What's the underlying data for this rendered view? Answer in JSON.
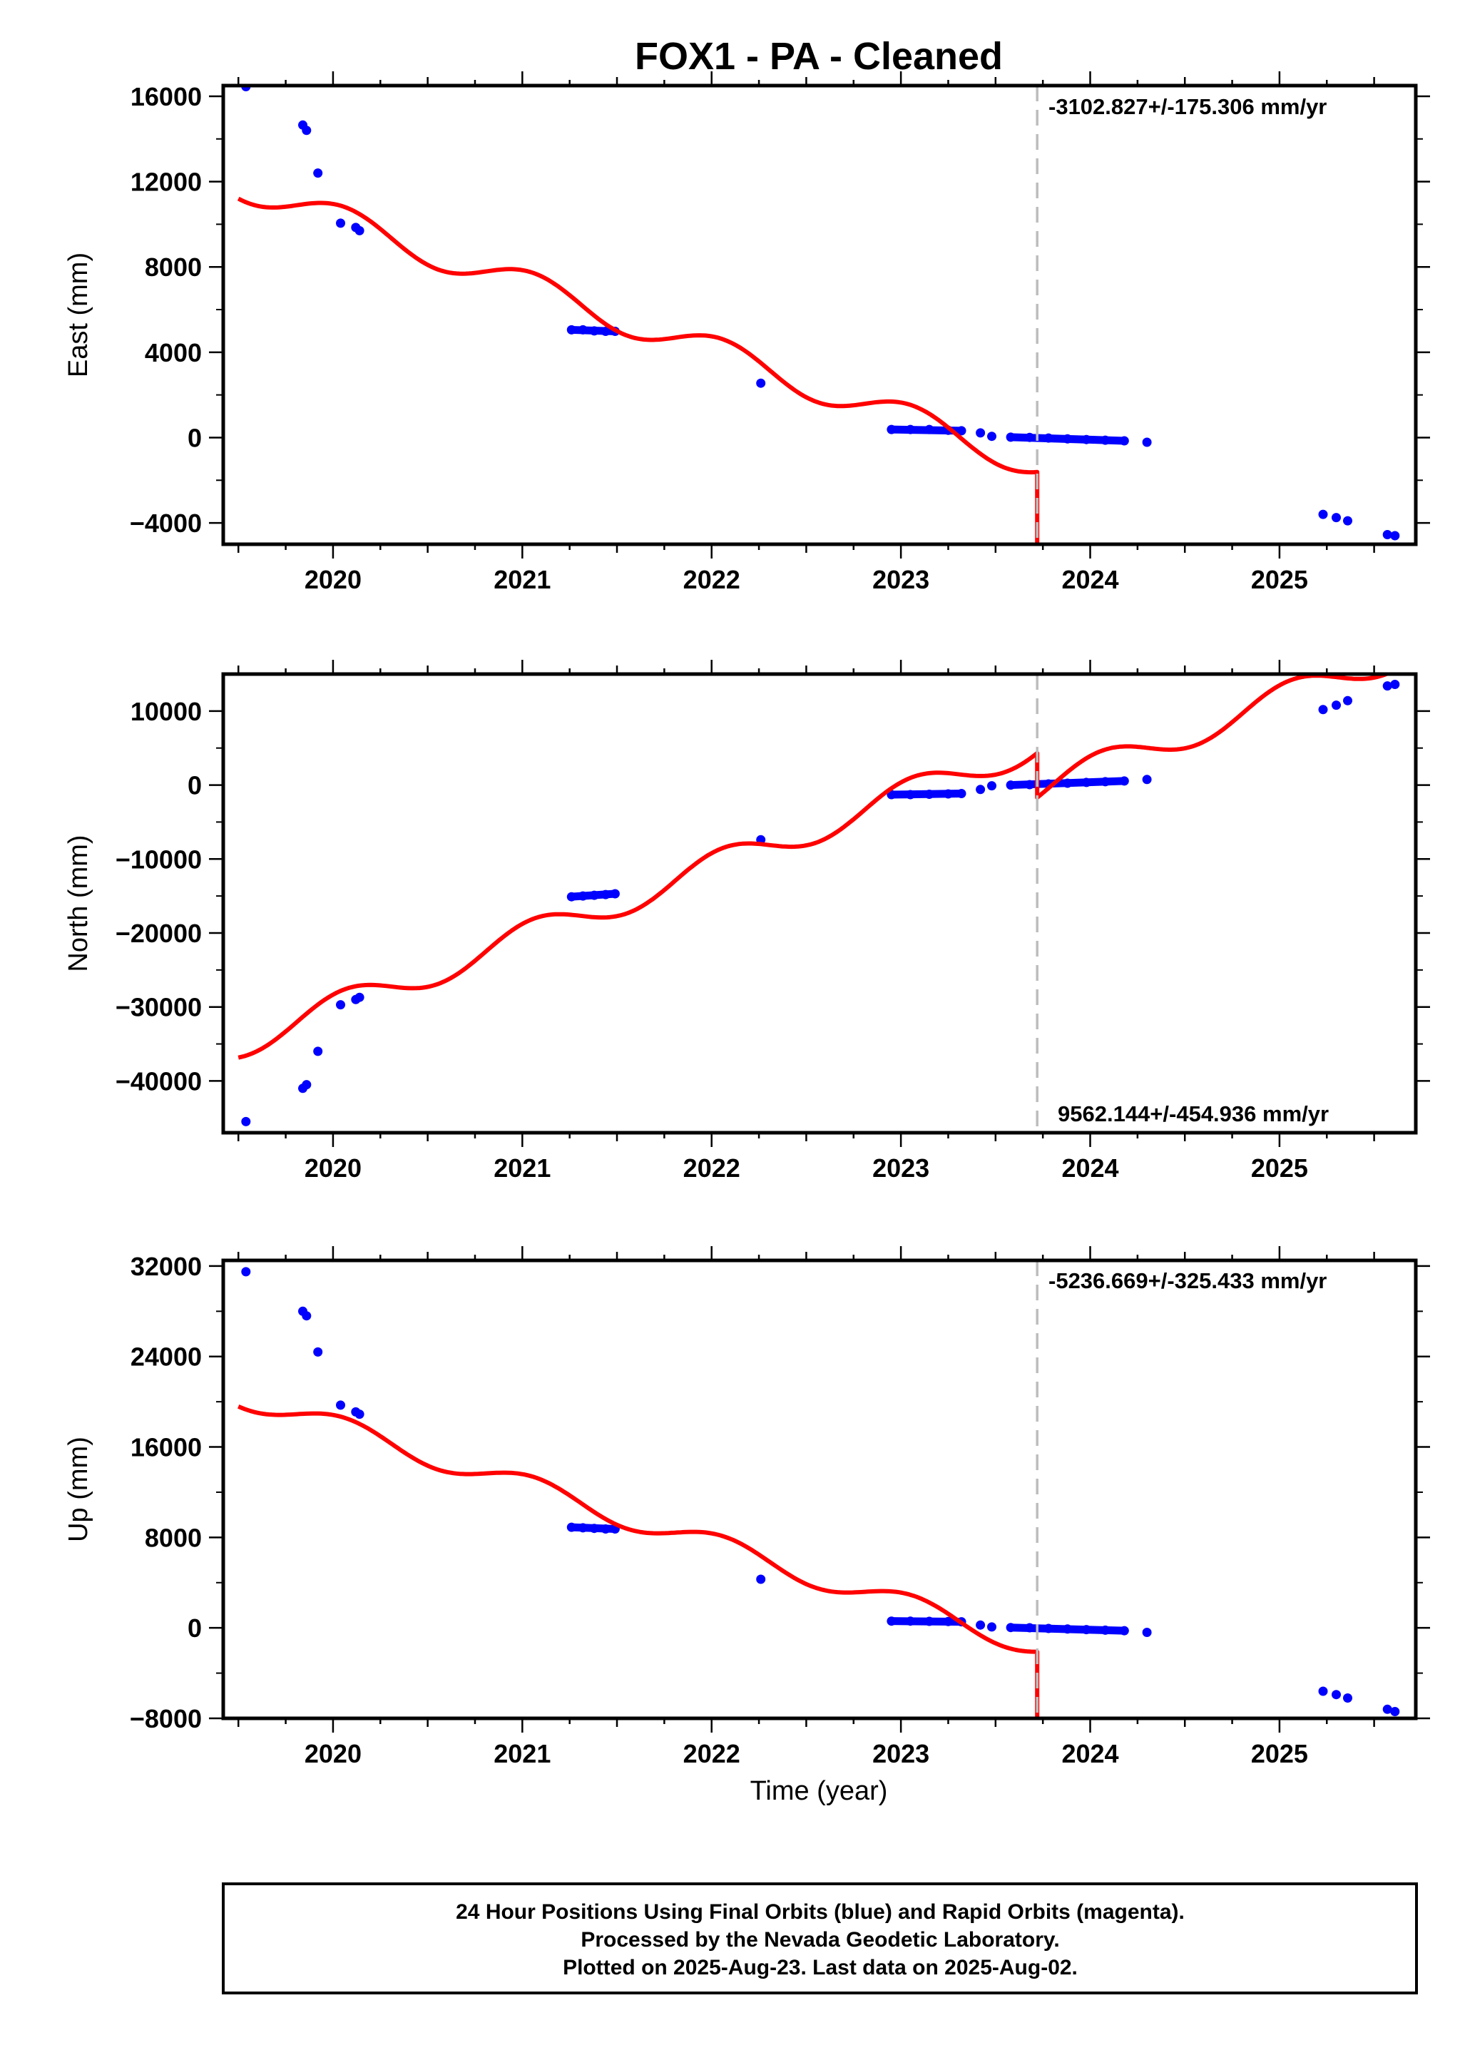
{
  "title": "FOX1  - PA - Cleaned",
  "xlabel": "Time (year)",
  "colors": {
    "data": "#0000ff",
    "model": "#ff0000",
    "marker": "#bdbdbd",
    "frame": "#000000"
  },
  "footer": [
    "24 Hour Positions Using Final Orbits (blue) and Rapid Orbits (magenta).",
    "Processed by the Nevada Geodetic Laboratory.",
    "Plotted on 2025-Aug-23. Last data on 2025-Aug-02."
  ],
  "chart_data": [
    {
      "type": "scatter",
      "name": "east",
      "ylabel": "East (mm)",
      "rate_text": "-3102.827+/-175.306 mm/yr",
      "xlim": [
        2019.42,
        2025.72
      ],
      "ylim": [
        -5000,
        16500
      ],
      "xticks": [
        2020,
        2021,
        2022,
        2023,
        2024,
        2025
      ],
      "yticks": [
        -4000,
        0,
        4000,
        8000,
        12000,
        16000
      ],
      "tick_labels": [
        "−4000",
        "0",
        "4000",
        "8000",
        "12000",
        "16000"
      ],
      "marker_x": 2023.72,
      "points": [
        [
          2019.54,
          16450
        ],
        [
          2019.84,
          14650
        ],
        [
          2019.86,
          14400
        ],
        [
          2019.92,
          12400
        ],
        [
          2020.04,
          10050
        ],
        [
          2020.12,
          9850
        ],
        [
          2020.14,
          9700
        ],
        [
          2021.26,
          5050
        ],
        [
          2021.32,
          5050
        ],
        [
          2021.38,
          5000
        ],
        [
          2021.44,
          4980
        ],
        [
          2021.49,
          4980
        ],
        [
          2022.26,
          2550
        ],
        [
          2022.95,
          380
        ],
        [
          2023.05,
          380
        ],
        [
          2023.15,
          380
        ],
        [
          2023.25,
          340
        ],
        [
          2023.32,
          320
        ],
        [
          2023.42,
          220
        ],
        [
          2023.48,
          60
        ],
        [
          2023.58,
          20
        ],
        [
          2023.68,
          10
        ],
        [
          2023.78,
          -20
        ],
        [
          2023.88,
          -60
        ],
        [
          2023.98,
          -90
        ],
        [
          2024.08,
          -120
        ],
        [
          2024.18,
          -150
        ],
        [
          2024.3,
          -220
        ],
        [
          2025.23,
          -3600
        ],
        [
          2025.3,
          -3750
        ],
        [
          2025.36,
          -3900
        ],
        [
          2025.57,
          -4550
        ],
        [
          2025.61,
          -4600
        ]
      ],
      "model_a": {
        "a": 10300,
        "slope": -3102.8,
        "amp": 700,
        "phase": 1.2
      },
      "model_b": {
        "a": 6500,
        "slope": -3102.8,
        "amp": 700,
        "phase": 1.2
      }
    },
    {
      "type": "scatter",
      "name": "north",
      "ylabel": "North (mm)",
      "rate_text": "9562.144+/-454.936 mm/yr",
      "xlim": [
        2019.42,
        2025.72
      ],
      "ylim": [
        -47000,
        15000
      ],
      "xticks": [
        2020,
        2021,
        2022,
        2023,
        2024,
        2025
      ],
      "yticks": [
        -40000,
        -30000,
        -20000,
        -10000,
        0,
        10000
      ],
      "tick_labels": [
        "−40000",
        "−30000",
        "−20000",
        "−10000",
        "0",
        "10000"
      ],
      "marker_x": 2023.72,
      "points": [
        [
          2019.54,
          -45500
        ],
        [
          2019.84,
          -41000
        ],
        [
          2019.86,
          -40500
        ],
        [
          2019.92,
          -36000
        ],
        [
          2020.04,
          -29700
        ],
        [
          2020.12,
          -29000
        ],
        [
          2020.14,
          -28700
        ],
        [
          2021.26,
          -15100
        ],
        [
          2021.32,
          -15000
        ],
        [
          2021.38,
          -14900
        ],
        [
          2021.44,
          -14800
        ],
        [
          2021.49,
          -14700
        ],
        [
          2022.26,
          -7400
        ],
        [
          2022.95,
          -1300
        ],
        [
          2023.05,
          -1300
        ],
        [
          2023.15,
          -1250
        ],
        [
          2023.25,
          -1200
        ],
        [
          2023.32,
          -1150
        ],
        [
          2023.42,
          -600
        ],
        [
          2023.48,
          -100
        ],
        [
          2023.58,
          0
        ],
        [
          2023.68,
          50
        ],
        [
          2023.78,
          150
        ],
        [
          2023.88,
          250
        ],
        [
          2023.98,
          350
        ],
        [
          2024.08,
          450
        ],
        [
          2024.18,
          550
        ],
        [
          2024.3,
          750
        ],
        [
          2025.23,
          10200
        ],
        [
          2025.3,
          10800
        ],
        [
          2025.36,
          11400
        ],
        [
          2025.57,
          13400
        ],
        [
          2025.61,
          13600
        ]
      ],
      "model_a": {
        "a": -30200,
        "slope": 9562.1,
        "amp": 2000,
        "phase": 1.2
      },
      "model_b": {
        "a": -36200,
        "slope": 9562.1,
        "amp": 2000,
        "phase": 1.2
      }
    },
    {
      "type": "scatter",
      "name": "up",
      "ylabel": "Up (mm)",
      "rate_text": "-5236.669+/-325.433 mm/yr",
      "xlim": [
        2019.42,
        2025.72
      ],
      "ylim": [
        -8000,
        32500
      ],
      "xticks": [
        2020,
        2021,
        2022,
        2023,
        2024,
        2025
      ],
      "yticks": [
        -8000,
        0,
        8000,
        16000,
        24000,
        32000
      ],
      "tick_labels": [
        "−8000",
        "0",
        "8000",
        "16000",
        "24000",
        "32000"
      ],
      "marker_x": 2023.72,
      "points": [
        [
          2019.54,
          31500
        ],
        [
          2019.84,
          28000
        ],
        [
          2019.86,
          27600
        ],
        [
          2019.92,
          24400
        ],
        [
          2020.04,
          19700
        ],
        [
          2020.12,
          19100
        ],
        [
          2020.14,
          18900
        ],
        [
          2021.26,
          8900
        ],
        [
          2021.32,
          8850
        ],
        [
          2021.38,
          8800
        ],
        [
          2021.44,
          8750
        ],
        [
          2021.49,
          8750
        ],
        [
          2022.26,
          4300
        ],
        [
          2022.95,
          600
        ],
        [
          2023.05,
          600
        ],
        [
          2023.15,
          580
        ],
        [
          2023.25,
          560
        ],
        [
          2023.32,
          540
        ],
        [
          2023.42,
          250
        ],
        [
          2023.48,
          80
        ],
        [
          2023.58,
          30
        ],
        [
          2023.68,
          10
        ],
        [
          2023.78,
          -50
        ],
        [
          2023.88,
          -100
        ],
        [
          2023.98,
          -150
        ],
        [
          2024.08,
          -200
        ],
        [
          2024.18,
          -250
        ],
        [
          2024.3,
          -400
        ],
        [
          2025.23,
          -5600
        ],
        [
          2025.3,
          -5900
        ],
        [
          2025.36,
          -6200
        ],
        [
          2025.57,
          -7200
        ],
        [
          2025.61,
          -7400
        ]
      ],
      "model_a": {
        "a": 17900,
        "slope": -5236.7,
        "amp": 1000,
        "phase": 1.2
      },
      "model_b": {
        "a": 11200,
        "slope": -5236.7,
        "amp": 1000,
        "phase": 1.2
      }
    }
  ]
}
